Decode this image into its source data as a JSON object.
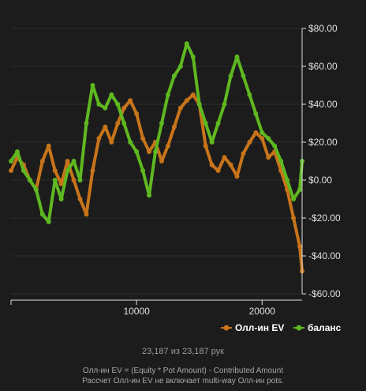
{
  "hands_text": "23,187 из 23,187 рук",
  "footnotes": [
    "Олл-ин EV = (Equity * Pot Amount) - Contributed Amount",
    "Рассчет Олл-ин EV не включает multi-way Олл-ин pots."
  ],
  "colors": {
    "background": "#1c1c1c",
    "allin_ev": "#c8741a",
    "balance": "#5fb820",
    "axis": "#e0e0e0",
    "grid": "#2c2c2c"
  },
  "chart_data": {
    "type": "line",
    "title": "",
    "xlabel": "",
    "ylabel": "",
    "xlim": [
      0,
      23187
    ],
    "ylim": [
      -60,
      80
    ],
    "x_ticks": [
      10000,
      20000
    ],
    "x_tick_labels": [
      "10000",
      "20000"
    ],
    "y_ticks": [
      80,
      60,
      40,
      20,
      0,
      -20,
      -40,
      -60
    ],
    "y_tick_labels": [
      "$80.00",
      "$60.00",
      "$40.00",
      "$20.00",
      "$0.00",
      "-$20.00",
      "-$40.00",
      "-$60.00"
    ],
    "legend_position": "bottom-right",
    "series": [
      {
        "name": "Олл-ин EV",
        "color": "#c8741a",
        "x": [
          0,
          500,
          1000,
          1500,
          2000,
          2500,
          3000,
          3500,
          4000,
          4500,
          5000,
          5500,
          6000,
          6500,
          7000,
          7500,
          8000,
          8500,
          9000,
          9500,
          10000,
          10500,
          11000,
          11500,
          12000,
          12500,
          13000,
          13500,
          14000,
          14500,
          15000,
          15500,
          16000,
          16500,
          17000,
          17500,
          18000,
          18500,
          19000,
          19500,
          20000,
          20500,
          21000,
          21500,
          22000,
          22500,
          23000,
          23187
        ],
        "y": [
          5,
          12,
          8,
          0,
          -5,
          10,
          18,
          5,
          -2,
          10,
          0,
          -10,
          -18,
          5,
          22,
          28,
          20,
          30,
          38,
          42,
          35,
          22,
          15,
          20,
          10,
          18,
          28,
          38,
          42,
          45,
          40,
          18,
          8,
          5,
          12,
          8,
          2,
          14,
          20,
          25,
          22,
          12,
          15,
          5,
          -5,
          -20,
          -35,
          -48
        ]
      },
      {
        "name": "баланс",
        "color": "#5fb820",
        "x": [
          0,
          500,
          1000,
          1500,
          2000,
          2500,
          3000,
          3500,
          4000,
          4500,
          5000,
          5500,
          6000,
          6500,
          7000,
          7500,
          8000,
          8500,
          9000,
          9500,
          10000,
          10500,
          11000,
          11500,
          12000,
          12500,
          13000,
          13500,
          14000,
          14500,
          15000,
          15500,
          16000,
          16500,
          17000,
          17500,
          18000,
          18500,
          19000,
          19500,
          20000,
          20500,
          21000,
          21500,
          22000,
          22500,
          23000,
          23187
        ],
        "y": [
          10,
          15,
          5,
          0,
          -5,
          -18,
          -22,
          0,
          -10,
          5,
          10,
          0,
          30,
          50,
          40,
          38,
          45,
          40,
          30,
          20,
          15,
          5,
          -8,
          15,
          30,
          45,
          55,
          60,
          72,
          65,
          40,
          30,
          20,
          30,
          40,
          55,
          65,
          55,
          45,
          35,
          25,
          22,
          18,
          10,
          0,
          -10,
          -5,
          10
        ]
      }
    ]
  }
}
